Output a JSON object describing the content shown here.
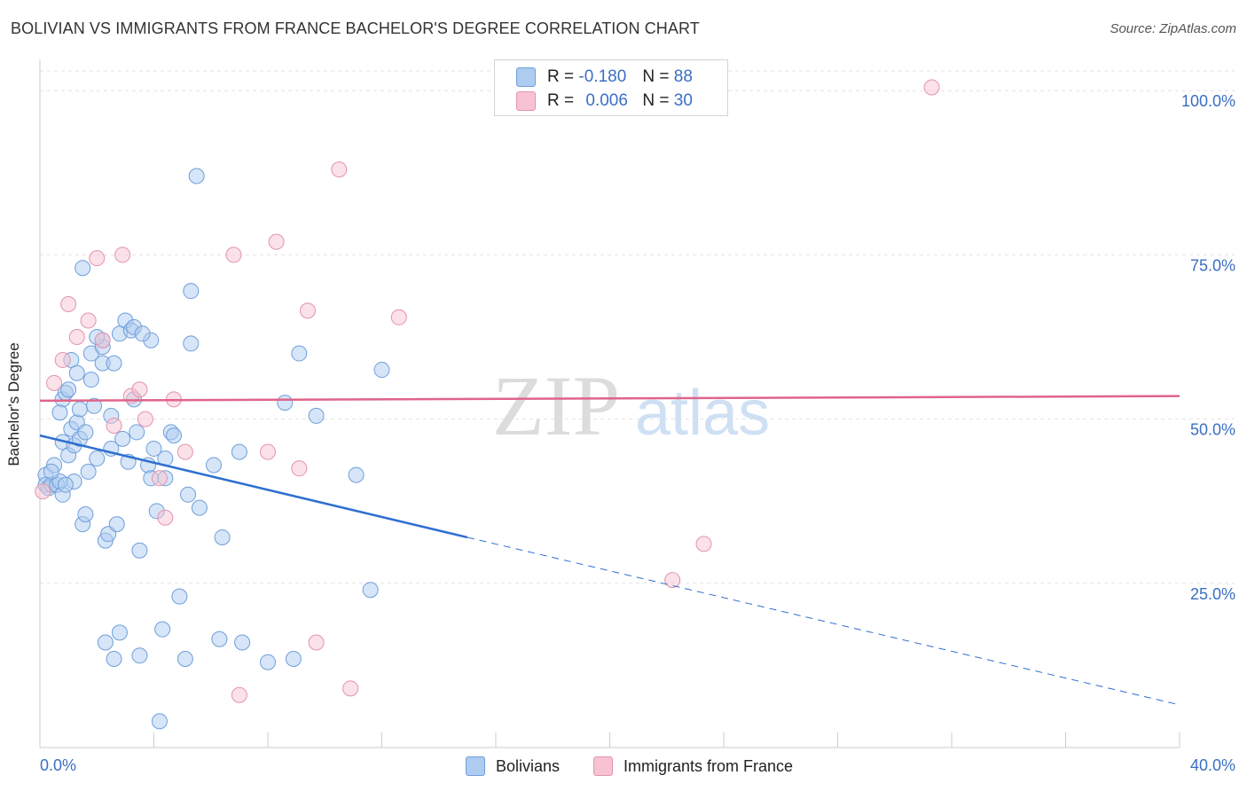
{
  "title": "BOLIVIAN VS IMMIGRANTS FROM FRANCE BACHELOR'S DEGREE CORRELATION CHART",
  "source": "Source: ZipAtlas.com",
  "watermark": {
    "zip": "ZIP",
    "atlas": "atlas"
  },
  "legend": {
    "r_label": "R =",
    "n_label": "N =",
    "series": [
      {
        "name": "Bolivians",
        "r": "-0.180",
        "n": "88",
        "fill": "#aecbf0",
        "stroke": "#6f9fdb"
      },
      {
        "name": "Immigrants from France",
        "r": "0.006",
        "n": "30",
        "fill": "#f7c3d2",
        "stroke": "#e394ae"
      }
    ]
  },
  "chart_data": {
    "type": "scatter",
    "title": "BOLIVIAN VS IMMIGRANTS FROM FRANCE BACHELOR'S DEGREE CORRELATION CHART",
    "xlabel": "",
    "ylabel": "Bachelor's Degree",
    "xlim": [
      0,
      40
    ],
    "ylim": [
      0,
      103
    ],
    "x_tick_labels": [
      "0.0%",
      "40.0%"
    ],
    "y_ticks": [
      25,
      50,
      75,
      100
    ],
    "y_tick_labels": [
      "25.0%",
      "50.0%",
      "75.0%",
      "100.0%"
    ],
    "grid": true,
    "series": [
      {
        "name": "Bolivians",
        "color": "#6f9fdb",
        "fill": "#aecbf0",
        "trend": {
          "x0": 0,
          "y0": 47.5,
          "x1": 15,
          "y1": 32,
          "dashed_to_x": 40,
          "dashed_to_y": 6.5,
          "color": "#2f6fd0"
        },
        "points": [
          [
            0.2,
            41.5
          ],
          [
            0.2,
            40.0
          ],
          [
            0.3,
            39.5
          ],
          [
            0.4,
            40.0
          ],
          [
            0.5,
            43.0
          ],
          [
            0.6,
            40.0
          ],
          [
            0.7,
            40.5
          ],
          [
            0.8,
            53.0
          ],
          [
            0.7,
            51.0
          ],
          [
            0.8,
            46.5
          ],
          [
            0.8,
            38.5
          ],
          [
            0.9,
            54.0
          ],
          [
            1.0,
            54.5
          ],
          [
            1.0,
            44.5
          ],
          [
            1.1,
            48.5
          ],
          [
            1.1,
            59.0
          ],
          [
            1.2,
            46.0
          ],
          [
            1.3,
            49.5
          ],
          [
            1.3,
            57.0
          ],
          [
            1.4,
            51.5
          ],
          [
            1.4,
            47.0
          ],
          [
            1.5,
            34.0
          ],
          [
            1.5,
            73.0
          ],
          [
            1.6,
            48.0
          ],
          [
            1.6,
            35.5
          ],
          [
            1.7,
            42.0
          ],
          [
            1.8,
            56.0
          ],
          [
            1.8,
            60.0
          ],
          [
            1.9,
            52.0
          ],
          [
            2.0,
            44.0
          ],
          [
            2.2,
            61.0
          ],
          [
            2.2,
            58.5
          ],
          [
            2.2,
            62.0
          ],
          [
            2.3,
            31.5
          ],
          [
            2.3,
            16.0
          ],
          [
            2.4,
            32.5
          ],
          [
            2.5,
            45.5
          ],
          [
            2.5,
            50.5
          ],
          [
            2.6,
            58.5
          ],
          [
            2.6,
            13.5
          ],
          [
            2.7,
            34.0
          ],
          [
            2.8,
            63.0
          ],
          [
            2.8,
            17.5
          ],
          [
            2.9,
            47.0
          ],
          [
            3.0,
            65.0
          ],
          [
            3.1,
            43.5
          ],
          [
            3.2,
            63.5
          ],
          [
            3.3,
            64.0
          ],
          [
            3.3,
            53.0
          ],
          [
            3.4,
            48.0
          ],
          [
            3.5,
            14.0
          ],
          [
            3.5,
            30.0
          ],
          [
            3.8,
            43.0
          ],
          [
            3.9,
            41.0
          ],
          [
            3.9,
            62.0
          ],
          [
            4.0,
            45.5
          ],
          [
            4.1,
            36.0
          ],
          [
            4.3,
            18.0
          ],
          [
            4.4,
            41.0
          ],
          [
            4.4,
            44.0
          ],
          [
            4.6,
            48.0
          ],
          [
            4.7,
            47.5
          ],
          [
            4.9,
            23.0
          ],
          [
            5.1,
            13.5
          ],
          [
            5.2,
            38.5
          ],
          [
            5.3,
            69.5
          ],
          [
            5.3,
            61.5
          ],
          [
            5.5,
            87.0
          ],
          [
            5.6,
            36.5
          ],
          [
            6.1,
            43.0
          ],
          [
            6.3,
            16.5
          ],
          [
            6.4,
            32.0
          ],
          [
            7.0,
            45.0
          ],
          [
            7.1,
            16.0
          ],
          [
            8.0,
            13.0
          ],
          [
            8.6,
            52.5
          ],
          [
            8.9,
            13.5
          ],
          [
            9.1,
            60.0
          ],
          [
            9.7,
            50.5
          ],
          [
            11.1,
            41.5
          ],
          [
            11.6,
            24.0
          ],
          [
            12.0,
            57.5
          ],
          [
            4.2,
            4.0
          ],
          [
            3.6,
            63.0
          ],
          [
            2.0,
            62.5
          ],
          [
            1.2,
            40.5
          ],
          [
            0.4,
            42.0
          ],
          [
            0.9,
            40.0
          ]
        ]
      },
      {
        "name": "Immigrants from France",
        "color": "#e394ae",
        "fill": "#f7c3d2",
        "trend": {
          "x0": 0,
          "y0": 52.8,
          "x1": 40,
          "y1": 53.5,
          "color": "#e0648a"
        },
        "points": [
          [
            0.1,
            39.0
          ],
          [
            0.5,
            55.5
          ],
          [
            0.8,
            59.0
          ],
          [
            1.0,
            67.5
          ],
          [
            1.3,
            62.5
          ],
          [
            1.7,
            65.0
          ],
          [
            2.0,
            74.5
          ],
          [
            2.2,
            62.0
          ],
          [
            2.6,
            49.0
          ],
          [
            2.9,
            75.0
          ],
          [
            3.2,
            53.5
          ],
          [
            3.5,
            54.5
          ],
          [
            3.7,
            50.0
          ],
          [
            4.2,
            41.0
          ],
          [
            4.4,
            35.0
          ],
          [
            4.7,
            53.0
          ],
          [
            5.1,
            45.0
          ],
          [
            6.8,
            75.0
          ],
          [
            7.0,
            8.0
          ],
          [
            8.0,
            45.0
          ],
          [
            8.3,
            77.0
          ],
          [
            9.1,
            42.5
          ],
          [
            9.4,
            66.5
          ],
          [
            9.7,
            16.0
          ],
          [
            10.5,
            88.0
          ],
          [
            10.9,
            9.0
          ],
          [
            12.6,
            65.5
          ],
          [
            22.2,
            25.5
          ],
          [
            23.3,
            31.0
          ],
          [
            31.3,
            100.5
          ]
        ]
      }
    ]
  }
}
